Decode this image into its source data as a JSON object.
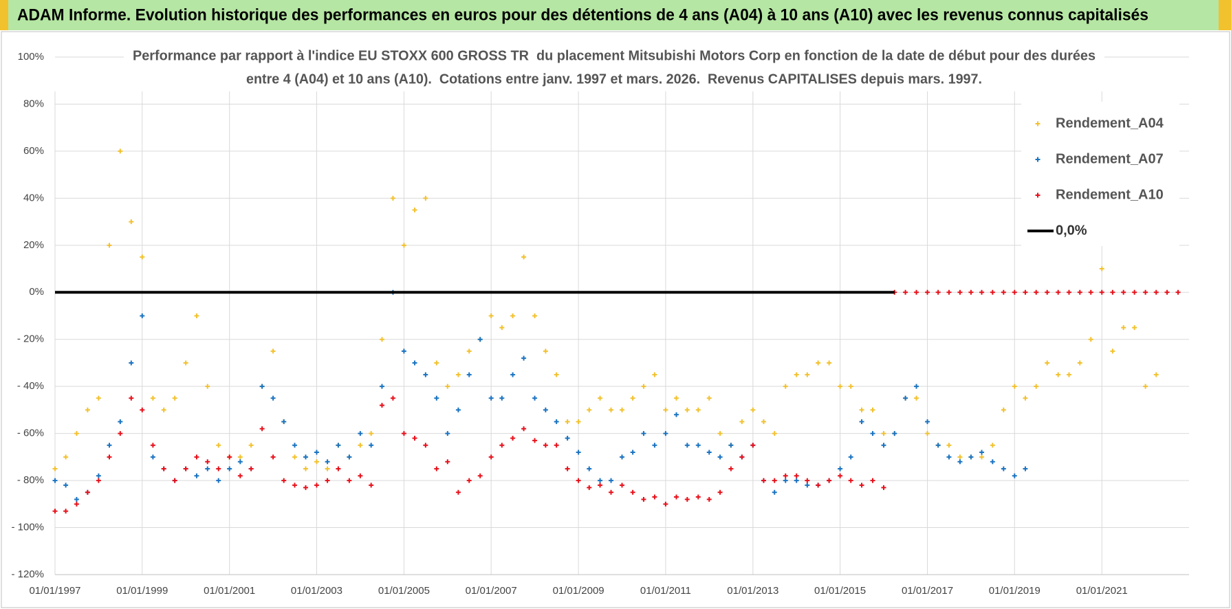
{
  "header": {
    "title": "ADAM Informe. Evolution historique des performances en euros pour des détentions de 4 ans (A04) à 10 ans (A10) avec les revenus connus capitalisés"
  },
  "chart_data": {
    "type": "scatter",
    "title": [
      "Performance par rapport à l'indice EU STOXX 600 GROSS TR  du placement Mitsubishi Motors Corp en fonction de la date de début pour des durées",
      "entre 4 (A04) et 10 ans (A10).  Cotations entre janv. 1997 et mars. 2026.  Revenus CAPITALISES depuis mars. 1997."
    ],
    "x": [
      "1997-01-01",
      "1997-04-01",
      "1997-07-01",
      "1997-10-01",
      "1998-01-01",
      "1998-04-01",
      "1998-07-01",
      "1998-10-01",
      "1999-01-01",
      "1999-04-01",
      "1999-07-01",
      "1999-10-01",
      "2000-01-01",
      "2000-04-01",
      "2000-07-01",
      "2000-10-01",
      "2001-01-01",
      "2001-04-01",
      "2001-07-01",
      "2001-10-01",
      "2002-01-01",
      "2002-04-01",
      "2002-07-01",
      "2002-10-01",
      "2003-01-01",
      "2003-04-01",
      "2003-07-01",
      "2003-10-01",
      "2004-01-01",
      "2004-04-01",
      "2004-07-01",
      "2004-10-01",
      "2005-01-01",
      "2005-04-01",
      "2005-07-01",
      "2005-10-01",
      "2006-01-01",
      "2006-04-01",
      "2006-07-01",
      "2006-10-01",
      "2007-01-01",
      "2007-04-01",
      "2007-07-01",
      "2007-10-01",
      "2008-01-01",
      "2008-04-01",
      "2008-07-01",
      "2008-10-01",
      "2009-01-01",
      "2009-04-01",
      "2009-07-01",
      "2009-10-01",
      "2010-01-01",
      "2010-04-01",
      "2010-07-01",
      "2010-10-01",
      "2011-01-01",
      "2011-04-01",
      "2011-07-01",
      "2011-10-01",
      "2012-01-01",
      "2012-04-01",
      "2012-07-01",
      "2012-10-01",
      "2013-01-01",
      "2013-04-01",
      "2013-07-01",
      "2013-10-01",
      "2014-01-01",
      "2014-04-01",
      "2014-07-01",
      "2014-10-01",
      "2015-01-01",
      "2015-04-01",
      "2015-07-01",
      "2015-10-01",
      "2016-01-01",
      "2016-04-01",
      "2016-07-01",
      "2016-10-01",
      "2017-01-01",
      "2017-04-01",
      "2017-07-01",
      "2017-10-01",
      "2018-01-01",
      "2018-04-01",
      "2018-07-01",
      "2018-10-01",
      "2019-01-01",
      "2019-04-01",
      "2019-07-01",
      "2019-10-01",
      "2020-01-01",
      "2020-04-01",
      "2020-07-01",
      "2020-10-01",
      "2021-01-01",
      "2021-04-01",
      "2021-07-01",
      "2021-10-01",
      "2022-01-01",
      "2022-04-01",
      "2022-07-01",
      "2022-10-01"
    ],
    "series": [
      {
        "name": "Rendement_A04",
        "color": "#f2c12e",
        "values": [
          -75,
          -70,
          -60,
          -50,
          -45,
          20,
          60,
          30,
          15,
          -45,
          -50,
          -45,
          -30,
          -10,
          -40,
          -65,
          -70,
          -70,
          -65,
          -40,
          -25,
          -55,
          -70,
          -75,
          -72,
          -75,
          -65,
          -70,
          -65,
          -60,
          -20,
          40,
          20,
          35,
          40,
          -30,
          -40,
          -35,
          -25,
          -20,
          -10,
          -15,
          -10,
          15,
          -10,
          -25,
          -35,
          -55,
          -55,
          -50,
          -45,
          -50,
          -50,
          -45,
          -40,
          -35,
          -50,
          -45,
          -50,
          -50,
          -45,
          -60,
          -65,
          -55,
          -50,
          -55,
          -60,
          -40,
          -35,
          -35,
          -30,
          -30,
          -40,
          -40,
          -50,
          -50,
          -60,
          -60,
          -45,
          -45,
          -60,
          -65,
          -65,
          -70,
          -70,
          -70,
          -65,
          -50,
          -40,
          -45,
          -40,
          -30,
          -35,
          -35,
          -30,
          -20,
          10,
          -25,
          -15,
          -15,
          -40,
          -35,
          null,
          null
        ]
      },
      {
        "name": "Rendement_A07",
        "color": "#1a73c1",
        "values": [
          -80,
          -82,
          -88,
          -85,
          -78,
          -65,
          -55,
          -30,
          -10,
          -70,
          -75,
          -80,
          -75,
          -78,
          -75,
          -80,
          -75,
          -72,
          -75,
          -40,
          -45,
          -55,
          -65,
          -70,
          -68,
          -72,
          -65,
          -70,
          -60,
          -65,
          -40,
          0,
          -25,
          -30,
          -35,
          -45,
          -60,
          -50,
          -35,
          -20,
          -45,
          -45,
          -35,
          -28,
          -45,
          -50,
          -55,
          -62,
          -68,
          -75,
          -80,
          -80,
          -70,
          -68,
          -60,
          -65,
          -60,
          -52,
          -65,
          -65,
          -68,
          -70,
          -65,
          -70,
          -65,
          -80,
          -85,
          -80,
          -80,
          -82,
          -82,
          -80,
          -75,
          -70,
          -55,
          -60,
          -65,
          -60,
          -45,
          -40,
          -55,
          -65,
          -70,
          -72,
          -70,
          -68,
          -72,
          -75,
          -78,
          -75,
          null,
          null,
          null,
          null,
          null,
          null,
          null,
          null,
          null,
          null,
          null,
          null,
          null,
          null
        ]
      },
      {
        "name": "Rendement_A10",
        "color": "#e8101a",
        "values": [
          -93,
          -93,
          -90,
          -85,
          -80,
          -70,
          -60,
          -45,
          -50,
          -65,
          -75,
          -80,
          -75,
          -70,
          -72,
          -75,
          -70,
          -78,
          -75,
          -58,
          -70,
          -80,
          -82,
          -83,
          -82,
          -80,
          -75,
          -80,
          -78,
          -82,
          -48,
          -45,
          -60,
          -62,
          -65,
          -75,
          -72,
          -85,
          -80,
          -78,
          -70,
          -65,
          -62,
          -58,
          -63,
          -65,
          -65,
          -75,
          -80,
          -83,
          -82,
          -85,
          -82,
          -85,
          -88,
          -87,
          -90,
          -87,
          -88,
          -87,
          -88,
          -85,
          -75,
          -70,
          -65,
          -80,
          -80,
          -78,
          -78,
          -80,
          -82,
          -80,
          -78,
          -80,
          -82,
          -80,
          -83,
          0,
          0,
          0,
          0,
          0,
          0,
          0,
          0,
          0,
          0,
          0,
          0,
          0,
          0,
          0,
          0,
          0,
          0,
          0,
          0,
          0,
          0,
          0,
          0,
          0,
          0,
          0
        ]
      },
      {
        "name": "0,0%",
        "type": "line",
        "color": "#000000",
        "x": [
          "1997-01-01",
          "2016-04-01"
        ],
        "values": [
          0,
          0
        ]
      }
    ],
    "xlim": [
      "1997-01-01",
      "2023-01-01"
    ],
    "xticks": [
      {
        "value": "1997-01-01",
        "label": "01/01/1997"
      },
      {
        "value": "1999-01-01",
        "label": "01/01/1999"
      },
      {
        "value": "2001-01-01",
        "label": "01/01/2001"
      },
      {
        "value": "2003-01-01",
        "label": "01/01/2003"
      },
      {
        "value": "2005-01-01",
        "label": "01/01/2005"
      },
      {
        "value": "2007-01-01",
        "label": "01/01/2007"
      },
      {
        "value": "2009-01-01",
        "label": "01/01/2009"
      },
      {
        "value": "2011-01-01",
        "label": "01/01/2011"
      },
      {
        "value": "2013-01-01",
        "label": "01/01/2013"
      },
      {
        "value": "2015-01-01",
        "label": "01/01/2015"
      },
      {
        "value": "2017-01-01",
        "label": "01/01/2017"
      },
      {
        "value": "2019-01-01",
        "label": "01/01/2019"
      },
      {
        "value": "2021-01-01",
        "label": "01/01/2021"
      }
    ],
    "ylim": [
      -120,
      100
    ],
    "yticks": [
      {
        "value": 100,
        "label": "100%"
      },
      {
        "value": 80,
        "label": "80%"
      },
      {
        "value": 60,
        "label": "60%"
      },
      {
        "value": 40,
        "label": "40%"
      },
      {
        "value": 20,
        "label": "20%"
      },
      {
        "value": 0,
        "label": "0%"
      },
      {
        "value": -20,
        "label": "- 20%"
      },
      {
        "value": -40,
        "label": "- 40%"
      },
      {
        "value": -60,
        "label": "- 60%"
      },
      {
        "value": -80,
        "label": "- 80%"
      },
      {
        "value": -100,
        "label": "- 100%"
      },
      {
        "value": -120,
        "label": "- 120%"
      }
    ],
    "grid": true,
    "legend": "upper right"
  }
}
